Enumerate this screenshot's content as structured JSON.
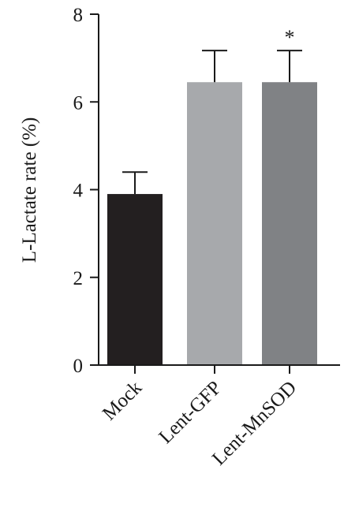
{
  "chart_data": {
    "type": "bar",
    "categories": [
      "Mock",
      "Lent-GFP",
      "Lent-MnSOD"
    ],
    "values": [
      3.9,
      6.45,
      6.45
    ],
    "errors": [
      0.5,
      0.72,
      0.72
    ],
    "annotations": [
      "",
      "",
      "*"
    ],
    "colors": [
      "#231f20",
      "#a7a9ac",
      "#808285"
    ],
    "title": "",
    "xlabel": "",
    "ylabel": "L-Lactate rate (%)",
    "ylim": [
      0,
      8
    ],
    "yticks": [
      0,
      2,
      4,
      6,
      8
    ],
    "grid": false,
    "legend": "none"
  }
}
